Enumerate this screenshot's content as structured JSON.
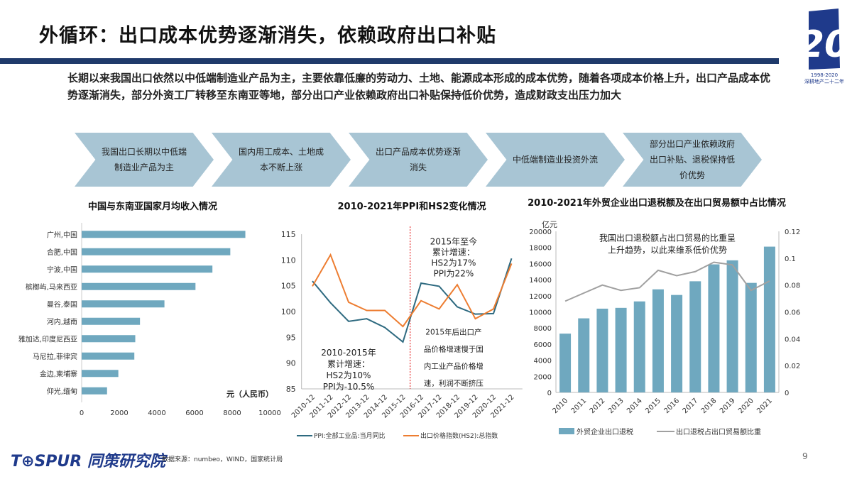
{
  "title": "外循环：出口成本优势逐渐消失，依赖政府出口补贴",
  "intro": "长期以来我国出口依然以中低端制造业产品为主，主要依靠低廉的劳动力、土地、能源成本形成的成本优势，随着各项成本价格上升，出口产品成本优势逐渐消失，部分外资工厂转移至东南亚等地，部分出口产业依赖政府出口补贴保持低价优势，造成财政支出压力加大",
  "steps": [
    "我国出口长期以中低端制造业产品为主",
    "国内用工成本、土地成本不断上涨",
    "出口产品成本优势逐渐消失",
    "中低端制造业投资外流",
    "部分出口产业依赖政府出口补贴、退税保持低价优势"
  ],
  "colors": {
    "brand": "#1f3a6b",
    "bar": "#6fa8bf",
    "ppi": "#2e6a80",
    "hs2": "#ed7d31",
    "ratio": "#a0a0a0",
    "divider": "#e00000"
  },
  "logo": {
    "years": "1998-2020",
    "text": "深耕地产二十二年",
    "number": "20"
  },
  "footer": {
    "brand": "T⊕SPUR 同策研究院",
    "source": "数据来源：numbeo，WIND，国家统计局",
    "page": "9"
  },
  "chart_data": [
    {
      "type": "bar",
      "orientation": "horizontal",
      "title": "中国与东南亚国家月均收入情况",
      "categories": [
        "广州,中国",
        "合肥,中国",
        "宁波,中国",
        "槟榔屿,马来西亚",
        "曼谷,泰国",
        "河内,越南",
        "雅加达,印度尼西亚",
        "马尼拉,菲律宾",
        "金边,柬埔寨",
        "仰光,缅甸"
      ],
      "values": [
        8700,
        7900,
        6950,
        6050,
        4400,
        3100,
        2850,
        2800,
        1950,
        1350
      ],
      "unit_label": "元（人民币）",
      "xlim": [
        0,
        10000
      ],
      "xticks": [
        "0",
        "2000",
        "4000",
        "6000",
        "8000",
        "10000"
      ]
    },
    {
      "type": "line",
      "title": "2010-2021年PPI和HS2变化情况",
      "categories": [
        "2010-12",
        "2011-12",
        "2012-12",
        "2013-12",
        "2014-12",
        "2015-12",
        "2016-12",
        "2017-12",
        "2018-12",
        "2019-12",
        "2020-12",
        "2021-12"
      ],
      "series": [
        {
          "name": "PPI:全部工业品:当月同比",
          "values": [
            105.9,
            101.7,
            98.1,
            98.6,
            96.9,
            94.1,
            105.5,
            104.9,
            100.9,
            99.5,
            99.6,
            110.3
          ]
        },
        {
          "name": "出口价格指数(HS2):总指数",
          "values": [
            104.9,
            111.0,
            101.8,
            100.2,
            100.2,
            97.1,
            102.1,
            100.5,
            105.2,
            98.6,
            100.5,
            109.3
          ]
        }
      ],
      "ylim": [
        85,
        115
      ],
      "yticks": [
        "85",
        "90",
        "95",
        "100",
        "105",
        "110",
        "115"
      ],
      "annotations": {
        "left": [
          "2010-2015年",
          "累计增速：",
          "HS2为10%",
          "PPI为-10.5%"
        ],
        "right_top": [
          "2015年至今",
          "累计增速：",
          "HS2为17%",
          "PPI为22%"
        ],
        "right_bottom": [
          "2015年后出口产",
          "品价格增速慢于国",
          "内工业产品价格增",
          "速，利润不断挤压"
        ]
      }
    },
    {
      "type": "bar",
      "title": "2010-2021年外贸企业出口退税额及在出口贸易额中占比情况",
      "ylabel": "亿元",
      "categories": [
        "2010",
        "2011",
        "2012",
        "2013",
        "2014",
        "2015",
        "2016",
        "2017",
        "2018",
        "2019",
        "2020",
        "2021"
      ],
      "series": [
        {
          "name": "外贸企业出口退税",
          "type": "bar",
          "axis": "left",
          "values": [
            7300,
            9200,
            10400,
            10500,
            11300,
            12800,
            12100,
            13800,
            15900,
            16400,
            13600,
            18100
          ]
        },
        {
          "name": "出口退税占出口贸易额比重",
          "type": "line",
          "axis": "right",
          "values": [
            0.068,
            0.074,
            0.08,
            0.076,
            0.078,
            0.091,
            0.087,
            0.09,
            0.097,
            0.095,
            0.076,
            0.083
          ]
        }
      ],
      "ylim": [
        0,
        20000
      ],
      "y2lim": [
        0,
        0.12
      ],
      "yticks": [
        "0",
        "2000",
        "4000",
        "6000",
        "8000",
        "10000",
        "12000",
        "14000",
        "16000",
        "18000",
        "20000"
      ],
      "y2ticks": [
        "0",
        "0.02",
        "0.04",
        "0.06",
        "0.08",
        "0.1",
        "0.12"
      ],
      "annotation": [
        "我国出口退税额占出口贸易的比重呈",
        "上升趋势，以此来维系低价优势"
      ]
    }
  ]
}
